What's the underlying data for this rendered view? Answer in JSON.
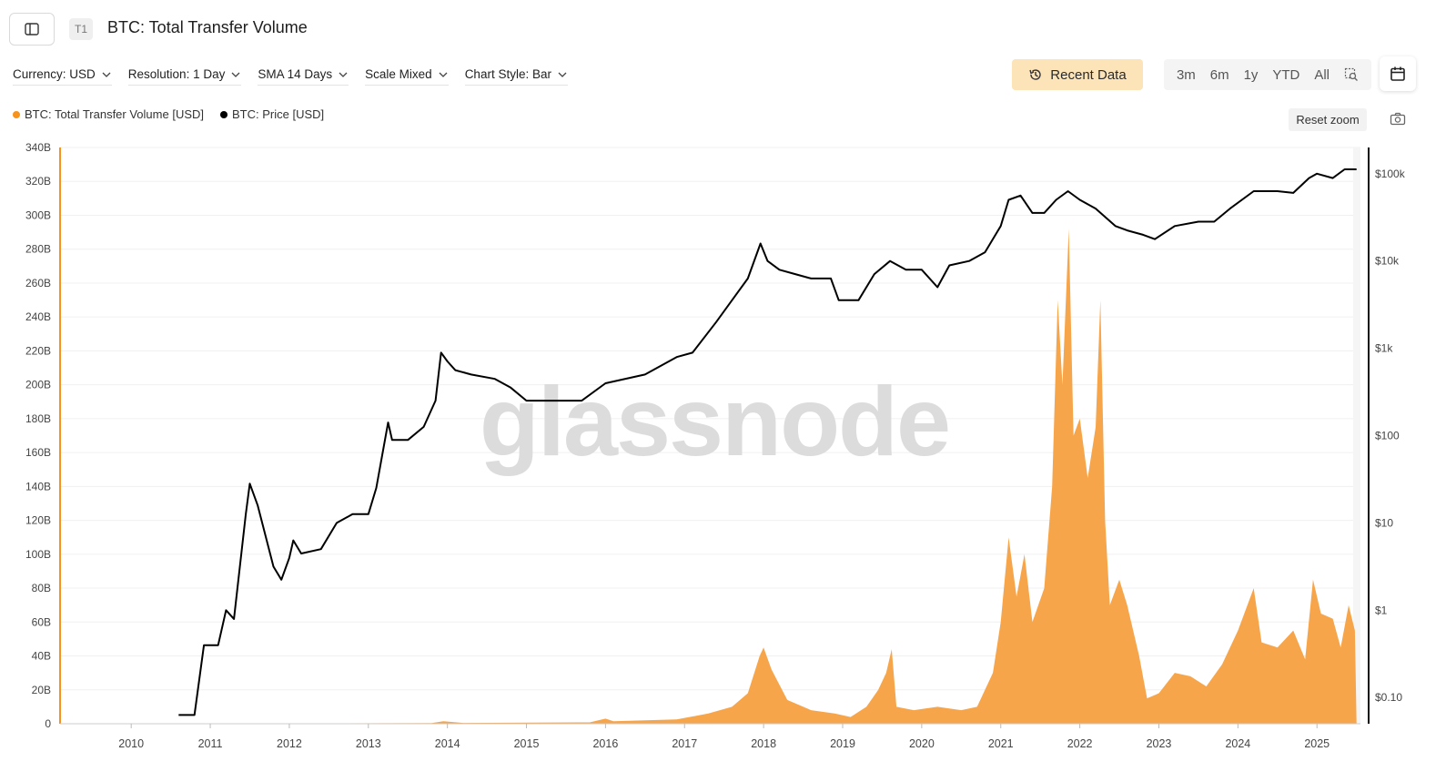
{
  "header": {
    "title": "BTC: Total Transfer Volume",
    "tier_badge": "T1"
  },
  "toolbar": {
    "currency": "Currency: USD",
    "resolution": "Resolution: 1 Day",
    "sma": "SMA 14 Days",
    "scale": "Scale Mixed",
    "chart_style": "Chart Style: Bar"
  },
  "actions": {
    "recent_data": "Recent Data",
    "ranges": [
      "3m",
      "6m",
      "1y",
      "YTD",
      "All"
    ],
    "reset_zoom": "Reset zoom"
  },
  "legend": [
    {
      "label": "BTC: Total Transfer Volume [USD]",
      "color": "#f7931a"
    },
    {
      "label": "BTC: Price [USD]",
      "color": "#000000"
    }
  ],
  "watermark": "glassnode",
  "colors": {
    "volume_fill": "#f7a54a",
    "volume_axis": "#f7931a",
    "price_line": "#000000",
    "recent_btn_bg": "#fde3b8"
  },
  "icons": {
    "sidebar": "sidebar-toggle-icon",
    "recent": "history-icon",
    "zoom": "zoom-select-icon",
    "calendar": "calendar-icon",
    "camera": "camera-icon"
  },
  "chart_data": {
    "type": "area",
    "x_ticks": [
      "2010",
      "2011",
      "2012",
      "2013",
      "2014",
      "2015",
      "2016",
      "2017",
      "2018",
      "2019",
      "2020",
      "2021",
      "2022",
      "2023",
      "2024",
      "2025"
    ],
    "y_left": {
      "ticks": [
        "0",
        "20B",
        "40B",
        "60B",
        "80B",
        "100B",
        "120B",
        "140B",
        "160B",
        "180B",
        "200B",
        "220B",
        "240B",
        "260B",
        "280B",
        "300B",
        "320B",
        "340B"
      ],
      "range": [
        0,
        340
      ]
    },
    "y_right": {
      "scale": "log",
      "ticks": [
        "$0.10",
        "$1",
        "$10",
        "$100",
        "$1k",
        "$10k",
        "$100k"
      ],
      "range_log10": [
        -1.3,
        5.3
      ]
    },
    "series": [
      {
        "name": "BTC: Total Transfer Volume [USD]",
        "axis": "left",
        "unit": "B USD",
        "points": [
          [
            2009.0,
            0
          ],
          [
            2010.5,
            0
          ],
          [
            2013.8,
            0.4
          ],
          [
            2013.95,
            1.5
          ],
          [
            2014.2,
            0.5
          ],
          [
            2015.8,
            0.8
          ],
          [
            2016.0,
            3
          ],
          [
            2016.1,
            1.5
          ],
          [
            2016.9,
            2.5
          ],
          [
            2017.3,
            6
          ],
          [
            2017.6,
            10
          ],
          [
            2017.8,
            18
          ],
          [
            2017.95,
            40
          ],
          [
            2018.0,
            45
          ],
          [
            2018.1,
            32
          ],
          [
            2018.3,
            14
          ],
          [
            2018.6,
            8
          ],
          [
            2018.9,
            6
          ],
          [
            2019.1,
            4
          ],
          [
            2019.3,
            10
          ],
          [
            2019.45,
            20
          ],
          [
            2019.55,
            30
          ],
          [
            2019.62,
            44
          ],
          [
            2019.68,
            10
          ],
          [
            2019.9,
            8
          ],
          [
            2020.2,
            10
          ],
          [
            2020.5,
            8
          ],
          [
            2020.7,
            10
          ],
          [
            2020.8,
            20
          ],
          [
            2020.9,
            30
          ],
          [
            2021.0,
            60
          ],
          [
            2021.1,
            110
          ],
          [
            2021.2,
            75
          ],
          [
            2021.3,
            100
          ],
          [
            2021.4,
            60
          ],
          [
            2021.55,
            80
          ],
          [
            2021.65,
            140
          ],
          [
            2021.72,
            250
          ],
          [
            2021.78,
            200
          ],
          [
            2021.86,
            292
          ],
          [
            2021.92,
            170
          ],
          [
            2022.0,
            180
          ],
          [
            2022.1,
            145
          ],
          [
            2022.2,
            175
          ],
          [
            2022.26,
            250
          ],
          [
            2022.32,
            120
          ],
          [
            2022.38,
            70
          ],
          [
            2022.5,
            85
          ],
          [
            2022.6,
            70
          ],
          [
            2022.75,
            40
          ],
          [
            2022.85,
            15
          ],
          [
            2023.0,
            18
          ],
          [
            2023.2,
            30
          ],
          [
            2023.4,
            28
          ],
          [
            2023.6,
            22
          ],
          [
            2023.8,
            35
          ],
          [
            2024.0,
            55
          ],
          [
            2024.2,
            80
          ],
          [
            2024.3,
            48
          ],
          [
            2024.5,
            45
          ],
          [
            2024.7,
            55
          ],
          [
            2024.85,
            38
          ],
          [
            2024.95,
            85
          ],
          [
            2025.05,
            65
          ],
          [
            2025.2,
            62
          ],
          [
            2025.3,
            45
          ],
          [
            2025.4,
            70
          ],
          [
            2025.48,
            55
          ],
          [
            2025.5,
            0
          ]
        ]
      },
      {
        "name": "BTC: Price [USD]",
        "axis": "right",
        "unit": "log10 USD",
        "points": [
          [
            2010.6,
            -1.2
          ],
          [
            2010.8,
            -1.2
          ],
          [
            2010.92,
            -0.4
          ],
          [
            2011.1,
            -0.4
          ],
          [
            2011.2,
            0
          ],
          [
            2011.3,
            -0.1
          ],
          [
            2011.45,
            1.1
          ],
          [
            2011.5,
            1.45
          ],
          [
            2011.6,
            1.2
          ],
          [
            2011.8,
            0.5
          ],
          [
            2011.9,
            0.35
          ],
          [
            2012.0,
            0.6
          ],
          [
            2012.05,
            0.8
          ],
          [
            2012.15,
            0.65
          ],
          [
            2012.4,
            0.7
          ],
          [
            2012.6,
            1.0
          ],
          [
            2012.8,
            1.1
          ],
          [
            2013.0,
            1.1
          ],
          [
            2013.1,
            1.4
          ],
          [
            2013.25,
            2.15
          ],
          [
            2013.3,
            1.95
          ],
          [
            2013.5,
            1.95
          ],
          [
            2013.7,
            2.1
          ],
          [
            2013.85,
            2.4
          ],
          [
            2013.92,
            2.95
          ],
          [
            2014.0,
            2.85
          ],
          [
            2014.1,
            2.75
          ],
          [
            2014.3,
            2.7
          ],
          [
            2014.6,
            2.65
          ],
          [
            2014.8,
            2.55
          ],
          [
            2015.0,
            2.4
          ],
          [
            2015.3,
            2.4
          ],
          [
            2015.7,
            2.4
          ],
          [
            2016.0,
            2.6
          ],
          [
            2016.5,
            2.7
          ],
          [
            2016.9,
            2.9
          ],
          [
            2017.1,
            2.95
          ],
          [
            2017.4,
            3.3
          ],
          [
            2017.6,
            3.55
          ],
          [
            2017.8,
            3.8
          ],
          [
            2017.96,
            4.2
          ],
          [
            2018.05,
            4.0
          ],
          [
            2018.2,
            3.9
          ],
          [
            2018.4,
            3.85
          ],
          [
            2018.6,
            3.8
          ],
          [
            2018.85,
            3.8
          ],
          [
            2018.95,
            3.55
          ],
          [
            2019.2,
            3.55
          ],
          [
            2019.4,
            3.85
          ],
          [
            2019.6,
            4.0
          ],
          [
            2019.8,
            3.9
          ],
          [
            2020.0,
            3.9
          ],
          [
            2020.2,
            3.7
          ],
          [
            2020.35,
            3.95
          ],
          [
            2020.6,
            4.0
          ],
          [
            2020.8,
            4.1
          ],
          [
            2021.0,
            4.4
          ],
          [
            2021.1,
            4.7
          ],
          [
            2021.25,
            4.75
          ],
          [
            2021.4,
            4.55
          ],
          [
            2021.55,
            4.55
          ],
          [
            2021.7,
            4.7
          ],
          [
            2021.85,
            4.8
          ],
          [
            2022.0,
            4.7
          ],
          [
            2022.2,
            4.6
          ],
          [
            2022.45,
            4.4
          ],
          [
            2022.6,
            4.35
          ],
          [
            2022.8,
            4.3
          ],
          [
            2022.95,
            4.25
          ],
          [
            2023.2,
            4.4
          ],
          [
            2023.5,
            4.45
          ],
          [
            2023.7,
            4.45
          ],
          [
            2023.9,
            4.6
          ],
          [
            2024.2,
            4.8
          ],
          [
            2024.5,
            4.8
          ],
          [
            2024.7,
            4.78
          ],
          [
            2024.9,
            4.95
          ],
          [
            2025.0,
            5.0
          ],
          [
            2025.2,
            4.95
          ],
          [
            2025.35,
            5.05
          ],
          [
            2025.5,
            5.05
          ]
        ]
      }
    ],
    "x_range": [
      2009.1,
      2025.55
    ],
    "grid": true,
    "legend_position": "top-left"
  }
}
